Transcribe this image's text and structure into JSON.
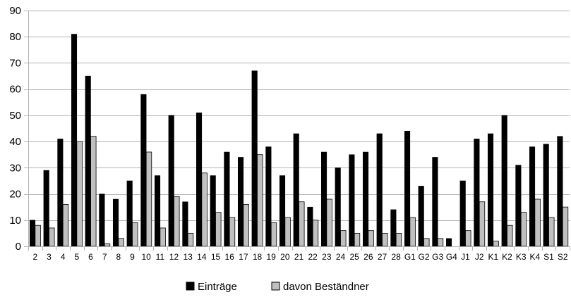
{
  "chart_data": {
    "type": "bar",
    "ylim": [
      0,
      90
    ],
    "yticks": [
      0,
      10,
      20,
      30,
      40,
      50,
      60,
      70,
      80,
      90
    ],
    "grid": true,
    "legend_position": "bottom",
    "categories": [
      "2",
      "3",
      "4",
      "5",
      "6",
      "7",
      "8",
      "9",
      "10",
      "11",
      "12",
      "13",
      "14",
      "15",
      "16",
      "17",
      "18",
      "19",
      "20",
      "21",
      "22",
      "23",
      "24",
      "25",
      "26",
      "27",
      "28",
      "G1",
      "G2",
      "G3",
      "G4",
      "J1",
      "J2",
      "K1",
      "K2",
      "K3",
      "K4",
      "S1",
      "S2"
    ],
    "series": [
      {
        "name": "Einträge",
        "color": "#000000",
        "values": [
          10,
          29,
          41,
          81,
          65,
          20,
          18,
          25,
          58,
          27,
          50,
          17,
          51,
          27,
          36,
          34,
          67,
          38,
          27,
          43,
          15,
          36,
          30,
          35,
          36,
          43,
          14,
          44,
          23,
          34,
          3,
          25,
          41,
          43,
          50,
          31,
          38,
          39,
          42
        ]
      },
      {
        "name": "davon Beständner",
        "color": "#c0c0c0",
        "values": [
          8,
          7,
          16,
          40,
          42,
          1,
          3,
          9,
          36,
          7,
          19,
          5,
          28,
          13,
          11,
          16,
          35,
          9,
          11,
          17,
          10,
          18,
          6,
          5,
          6,
          5,
          5,
          11,
          3,
          3,
          0,
          6,
          17,
          2,
          8,
          13,
          18,
          11,
          15
        ]
      }
    ]
  }
}
